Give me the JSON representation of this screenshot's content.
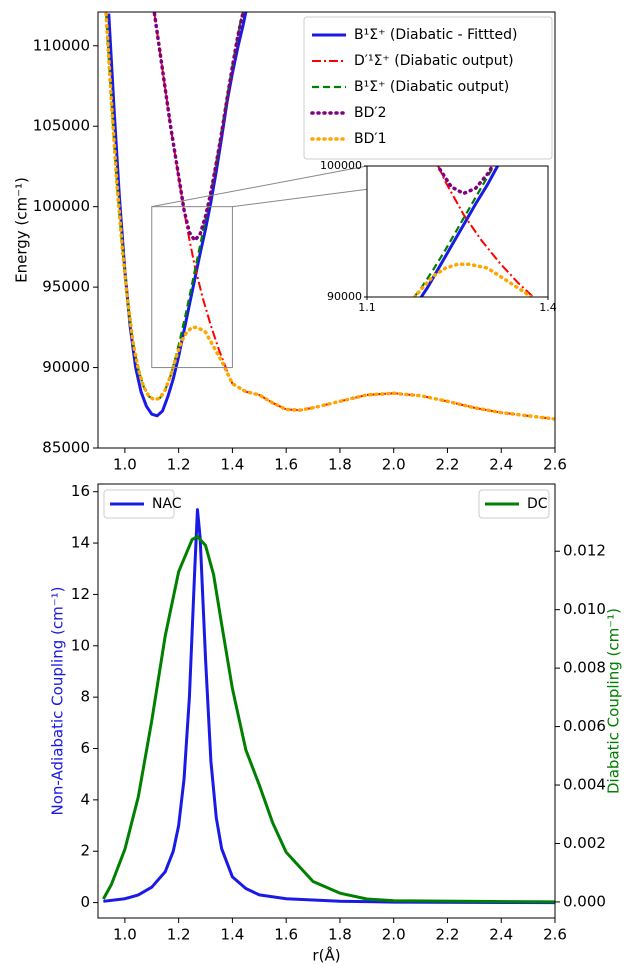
{
  "chart_data": [
    {
      "type": "line",
      "ylabel": "Energy (cm⁻¹)",
      "legend": "upper right",
      "xlim": [
        0.9,
        2.6
      ],
      "ylim": [
        85000,
        112100
      ],
      "xticks": [
        {
          "value": 1,
          "label": "1.0"
        },
        1.2,
        1.4,
        1.6,
        1.8,
        {
          "value": 2,
          "label": "2.0"
        },
        2.2,
        2.4,
        2.6
      ],
      "yticks": [
        85000,
        90000,
        95000,
        100000,
        105000,
        110000
      ],
      "inset": {
        "xlim": [
          1.1,
          1.4
        ],
        "ylim": [
          90000,
          100000
        ],
        "xticks": [
          1.1,
          1.4
        ],
        "yticks": [
          90000,
          100000
        ]
      },
      "series": [
        {
          "name": "B¹Σ⁺ (Diabatic - Fittted)",
          "color": "#1a1ae6",
          "style": "solid",
          "x": [
            0.94,
            0.96,
            0.98,
            1.0,
            1.02,
            1.04,
            1.06,
            1.08,
            1.1,
            1.12,
            1.14,
            1.16,
            1.18,
            1.2,
            1.22,
            1.24,
            1.26,
            1.28,
            1.3,
            1.32,
            1.34,
            1.36,
            1.38,
            1.4,
            1.42,
            1.44,
            1.45
          ],
          "values": [
            112000,
            106000,
            100500,
            96000,
            92500,
            90000,
            88500,
            87600,
            87100,
            87000,
            87300,
            88200,
            89300,
            90700,
            92300,
            93900,
            95500,
            97100,
            98600,
            100300,
            102200,
            104300,
            106500,
            108300,
            109900,
            111300,
            112100
          ]
        },
        {
          "name": "D′¹Σ⁺  (Diabatic output)",
          "color": "#ff0000",
          "style": "dashdot",
          "x": [
            1.11,
            1.14,
            1.17,
            1.2,
            1.23,
            1.26,
            1.29,
            1.32,
            1.35,
            1.38,
            1.4,
            1.45,
            1.5,
            1.55,
            1.6,
            1.65,
            1.7,
            1.8,
            1.9,
            2.0,
            2.1,
            2.2,
            2.3,
            2.4,
            2.5,
            2.6
          ],
          "values": [
            112000,
            108500,
            105000,
            101800,
            98800,
            96300,
            94300,
            92600,
            91100,
            89800,
            89000,
            88500,
            88300,
            87800,
            87400,
            87350,
            87500,
            87900,
            88300,
            88400,
            88250,
            87900,
            87500,
            87200,
            87000,
            86800
          ]
        },
        {
          "name": "B¹Σ⁺ (Diabatic output)",
          "color": "#008000",
          "style": "dashed",
          "x": [
            0.93,
            0.95,
            0.97,
            0.99,
            1.01,
            1.03,
            1.05,
            1.07,
            1.09,
            1.11,
            1.13,
            1.15,
            1.17,
            1.19,
            1.21,
            1.23,
            1.25,
            1.27,
            1.29,
            1.31,
            1.33,
            1.35,
            1.37,
            1.39,
            1.41,
            1.43,
            1.44
          ],
          "values": [
            112000,
            106500,
            101500,
            97500,
            94200,
            91600,
            89900,
            88800,
            88200,
            88000,
            88100,
            88600,
            89500,
            90700,
            92100,
            93600,
            95200,
            96800,
            98400,
            100000,
            101800,
            103700,
            105800,
            107800,
            109700,
            111500,
            112100
          ]
        },
        {
          "name": "BD′2",
          "color": "#800080",
          "style": "dotted",
          "x": [
            1.11,
            1.14,
            1.17,
            1.2,
            1.22,
            1.24,
            1.26,
            1.28,
            1.3,
            1.32,
            1.34,
            1.36,
            1.38,
            1.4,
            1.42,
            1.44
          ],
          "values": [
            112000,
            108500,
            105000,
            101900,
            99800,
            98400,
            97900,
            98300,
            99400,
            100900,
            102700,
            104600,
            106700,
            108700,
            110600,
            112100
          ]
        },
        {
          "name": "BD′1",
          "color": "#ffa500",
          "style": "dotted",
          "x": [
            0.93,
            0.95,
            0.97,
            0.99,
            1.01,
            1.03,
            1.05,
            1.07,
            1.09,
            1.11,
            1.13,
            1.15,
            1.17,
            1.19,
            1.21,
            1.23,
            1.25,
            1.27,
            1.3,
            1.33,
            1.36,
            1.4,
            1.45,
            1.5,
            1.55,
            1.6,
            1.65,
            1.7,
            1.8,
            1.9,
            2.0,
            2.1,
            2.2,
            2.3,
            2.4,
            2.5,
            2.6
          ],
          "values": [
            112000,
            106500,
            101500,
            97500,
            94200,
            91600,
            89900,
            88800,
            88200,
            88000,
            88100,
            88600,
            89500,
            90600,
            91600,
            92200,
            92500,
            92500,
            92200,
            91300,
            90400,
            89000,
            88500,
            88300,
            87800,
            87400,
            87350,
            87500,
            87900,
            88300,
            88400,
            88250,
            87900,
            87500,
            87200,
            87000,
            86800
          ]
        }
      ]
    },
    {
      "type": "line",
      "xlabel": "r(Å)",
      "ylabel": "Non-Adiabatic Coupling (cm⁻¹)",
      "ylabel_color": "#1a1ae6",
      "y2label": "Diabatic Coupling (cm⁻¹)",
      "y2label_color": "#008000",
      "xlim": [
        0.9,
        2.6
      ],
      "ylim": [
        -0.6,
        16.3
      ],
      "y2lim": [
        -0.00055,
        0.0143
      ],
      "xticks": [
        {
          "value": 1,
          "label": "1.0"
        },
        1.2,
        1.4,
        1.6,
        1.8,
        {
          "value": 2,
          "label": "2.0"
        },
        2.2,
        2.4,
        2.6
      ],
      "yticks": [
        0,
        2,
        4,
        6,
        8,
        10,
        12,
        14,
        16
      ],
      "y2ticks": [
        {
          "value": 0,
          "label": "0.000"
        },
        {
          "value": 0.002,
          "label": "0.002"
        },
        {
          "value": 0.004,
          "label": "0.004"
        },
        {
          "value": 0.006,
          "label": "0.006"
        },
        {
          "value": 0.008,
          "label": "0.008"
        },
        {
          "value": 0.01,
          "label": "0.010"
        },
        {
          "value": 0.012,
          "label": "0.012"
        }
      ],
      "series": [
        {
          "name": "NAC",
          "color": "#1a1ae6",
          "style": "solid",
          "legend": "upper left",
          "x": [
            0.92,
            1.0,
            1.05,
            1.1,
            1.15,
            1.18,
            1.2,
            1.22,
            1.24,
            1.26,
            1.27,
            1.28,
            1.3,
            1.32,
            1.34,
            1.36,
            1.4,
            1.45,
            1.5,
            1.6,
            1.8,
            2.0,
            2.6
          ],
          "values": [
            0.05,
            0.15,
            0.3,
            0.6,
            1.2,
            2.0,
            3.0,
            4.8,
            8.0,
            13.0,
            15.3,
            14.2,
            9.5,
            5.5,
            3.3,
            2.1,
            1.0,
            0.55,
            0.3,
            0.15,
            0.05,
            0.02,
            0
          ]
        },
        {
          "name": "DC",
          "color": "#008000",
          "style": "solid",
          "legend": "upper right",
          "axis": "y2",
          "x": [
            0.92,
            0.95,
            1.0,
            1.05,
            1.1,
            1.15,
            1.2,
            1.25,
            1.27,
            1.3,
            1.33,
            1.36,
            1.4,
            1.45,
            1.5,
            1.55,
            1.6,
            1.7,
            1.8,
            1.9,
            2.0,
            2.6
          ],
          "values": [
            0.0001,
            0.0006,
            0.0018,
            0.0036,
            0.0062,
            0.0091,
            0.0113,
            0.0124,
            0.0125,
            0.0122,
            0.0112,
            0.0095,
            0.0073,
            0.0052,
            0.004,
            0.0027,
            0.0017,
            0.0007,
            0.0003,
            0.0001,
            4e-05,
            0
          ]
        }
      ]
    }
  ]
}
